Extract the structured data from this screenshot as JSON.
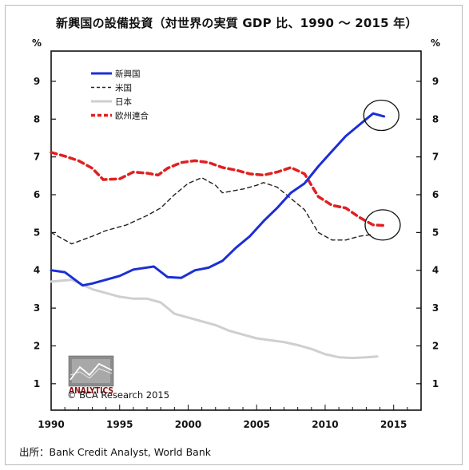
{
  "title": "新興国の設備投資（対世界の実質 GDP 比、1990 ～ 2015 年）",
  "source": "出所：Bank Credit Analyst, World Bank",
  "logo": {
    "brand": "ANALYTICS",
    "credit": "© BCA Research 2015"
  },
  "chart_data": {
    "type": "line",
    "title": "新興国の設備投資（対世界の実質 GDP 比、1990 ～ 2015 年）",
    "xlabel": "",
    "ylabel": "%",
    "xlim": [
      1990,
      2017
    ],
    "ylim": [
      0.3,
      9.8
    ],
    "x_ticks": [
      1990,
      1995,
      2000,
      2005,
      2010,
      2015
    ],
    "y_ticks": [
      1,
      2,
      3,
      4,
      5,
      6,
      7,
      8,
      9
    ],
    "y_unit_left": "%",
    "y_unit_right": "%",
    "grid": false,
    "legend_position": "top-left",
    "series": [
      {
        "name": "新興国",
        "color": "#1b2fd6",
        "style": "solid",
        "width": 3,
        "points": [
          [
            1990,
            4.0
          ],
          [
            1991,
            3.95
          ],
          [
            1992.3,
            3.6
          ],
          [
            1993,
            3.65
          ],
          [
            1994,
            3.75
          ],
          [
            1995,
            3.85
          ],
          [
            1996,
            4.02
          ],
          [
            1997.5,
            4.1
          ],
          [
            1998.5,
            3.82
          ],
          [
            1999.5,
            3.8
          ],
          [
            2000.5,
            4.0
          ],
          [
            2001.5,
            4.07
          ],
          [
            2002.5,
            4.25
          ],
          [
            2003.5,
            4.6
          ],
          [
            2004.5,
            4.9
          ],
          [
            2005.5,
            5.3
          ],
          [
            2006.5,
            5.65
          ],
          [
            2007.5,
            6.05
          ],
          [
            2008.5,
            6.3
          ],
          [
            2009.5,
            6.75
          ],
          [
            2010.5,
            7.15
          ],
          [
            2011.5,
            7.55
          ],
          [
            2012.5,
            7.85
          ],
          [
            2013.5,
            8.15
          ],
          [
            2014.3,
            8.07
          ]
        ]
      },
      {
        "name": "米国",
        "color": "#222222",
        "style": "dashed",
        "width": 1.4,
        "points": [
          [
            1990,
            5.0
          ],
          [
            1991.5,
            4.7
          ],
          [
            1993,
            4.9
          ],
          [
            1994,
            5.05
          ],
          [
            1995.5,
            5.2
          ],
          [
            1997,
            5.45
          ],
          [
            1998,
            5.65
          ],
          [
            1999,
            6.0
          ],
          [
            2000,
            6.3
          ],
          [
            2001,
            6.45
          ],
          [
            2002,
            6.25
          ],
          [
            2002.5,
            6.05
          ],
          [
            2004,
            6.15
          ],
          [
            2005,
            6.25
          ],
          [
            2005.5,
            6.32
          ],
          [
            2006.5,
            6.2
          ],
          [
            2007.5,
            5.9
          ],
          [
            2008.5,
            5.6
          ],
          [
            2009.5,
            5.0
          ],
          [
            2010.5,
            4.8
          ],
          [
            2011.5,
            4.8
          ],
          [
            2012.5,
            4.9
          ],
          [
            2013.5,
            4.95
          ]
        ]
      },
      {
        "name": "日本",
        "color": "#cfcfcf",
        "style": "solid",
        "width": 3,
        "points": [
          [
            1990,
            3.7
          ],
          [
            1991.5,
            3.75
          ],
          [
            1993,
            3.5
          ],
          [
            1994,
            3.4
          ],
          [
            1995,
            3.3
          ],
          [
            1996,
            3.25
          ],
          [
            1997,
            3.25
          ],
          [
            1998,
            3.15
          ],
          [
            1999,
            2.85
          ],
          [
            2000,
            2.75
          ],
          [
            2001,
            2.65
          ],
          [
            2002,
            2.55
          ],
          [
            2003,
            2.4
          ],
          [
            2004,
            2.3
          ],
          [
            2005,
            2.2
          ],
          [
            2006,
            2.15
          ],
          [
            2007,
            2.1
          ],
          [
            2008,
            2.02
          ],
          [
            2009,
            1.92
          ],
          [
            2010,
            1.78
          ],
          [
            2011,
            1.7
          ],
          [
            2012,
            1.68
          ],
          [
            2013,
            1.7
          ],
          [
            2013.8,
            1.72
          ]
        ]
      },
      {
        "name": "欧州連合",
        "color": "#e02020",
        "style": "dashed",
        "width": 3.5,
        "points": [
          [
            1990,
            7.12
          ],
          [
            1991,
            7.02
          ],
          [
            1992,
            6.9
          ],
          [
            1993,
            6.7
          ],
          [
            1993.8,
            6.4
          ],
          [
            1995,
            6.42
          ],
          [
            1996,
            6.6
          ],
          [
            1997,
            6.57
          ],
          [
            1997.8,
            6.52
          ],
          [
            1998.5,
            6.7
          ],
          [
            1999.5,
            6.85
          ],
          [
            2000.5,
            6.9
          ],
          [
            2001.5,
            6.85
          ],
          [
            2002.5,
            6.72
          ],
          [
            2003.5,
            6.65
          ],
          [
            2004.5,
            6.55
          ],
          [
            2005.5,
            6.52
          ],
          [
            2006.5,
            6.6
          ],
          [
            2007.5,
            6.72
          ],
          [
            2008.5,
            6.55
          ],
          [
            2009.5,
            5.95
          ],
          [
            2010.5,
            5.72
          ],
          [
            2011.5,
            5.65
          ],
          [
            2012.5,
            5.4
          ],
          [
            2013.5,
            5.2
          ],
          [
            2014.5,
            5.18
          ]
        ]
      }
    ],
    "annotations": [
      {
        "type": "circle",
        "x": 2014.1,
        "y": 8.1
      },
      {
        "type": "circle",
        "x": 2014.2,
        "y": 5.2
      }
    ]
  }
}
